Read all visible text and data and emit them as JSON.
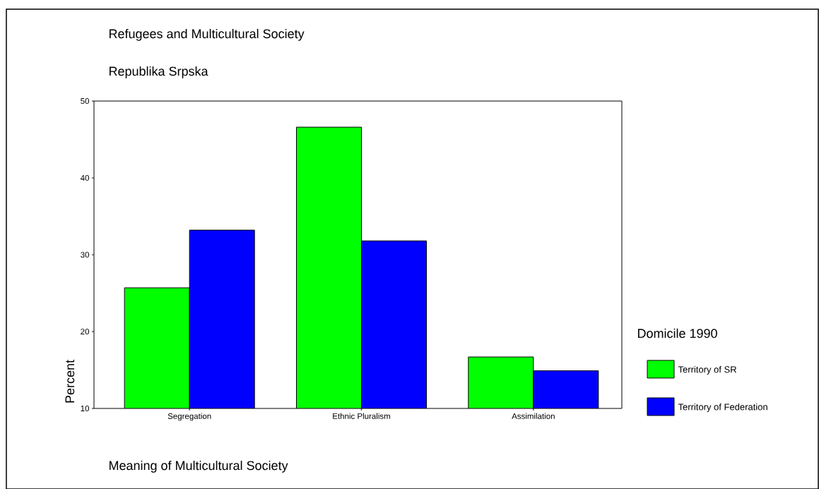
{
  "chart_data": {
    "type": "bar",
    "title": "Refugees and Multicultural Society",
    "subtitle": "Republika Srpska",
    "xlabel": "Meaning of Multicultural Society",
    "ylabel": "Percent",
    "legend_title": "Domicile 1990",
    "categories": [
      "Segregation",
      "Ethnic Pluralism",
      "Assimilation"
    ],
    "series": [
      {
        "name": "Territory of SR",
        "color": "#00ff00",
        "values": [
          25.7,
          46.6,
          16.7
        ]
      },
      {
        "name": "Territory of Federation",
        "color": "#0000ff",
        "values": [
          33.2,
          31.8,
          14.9
        ]
      }
    ],
    "ylim": [
      10,
      50
    ],
    "yticks": [
      10,
      20,
      30,
      40,
      50
    ],
    "grid": false,
    "legend": "right"
  }
}
